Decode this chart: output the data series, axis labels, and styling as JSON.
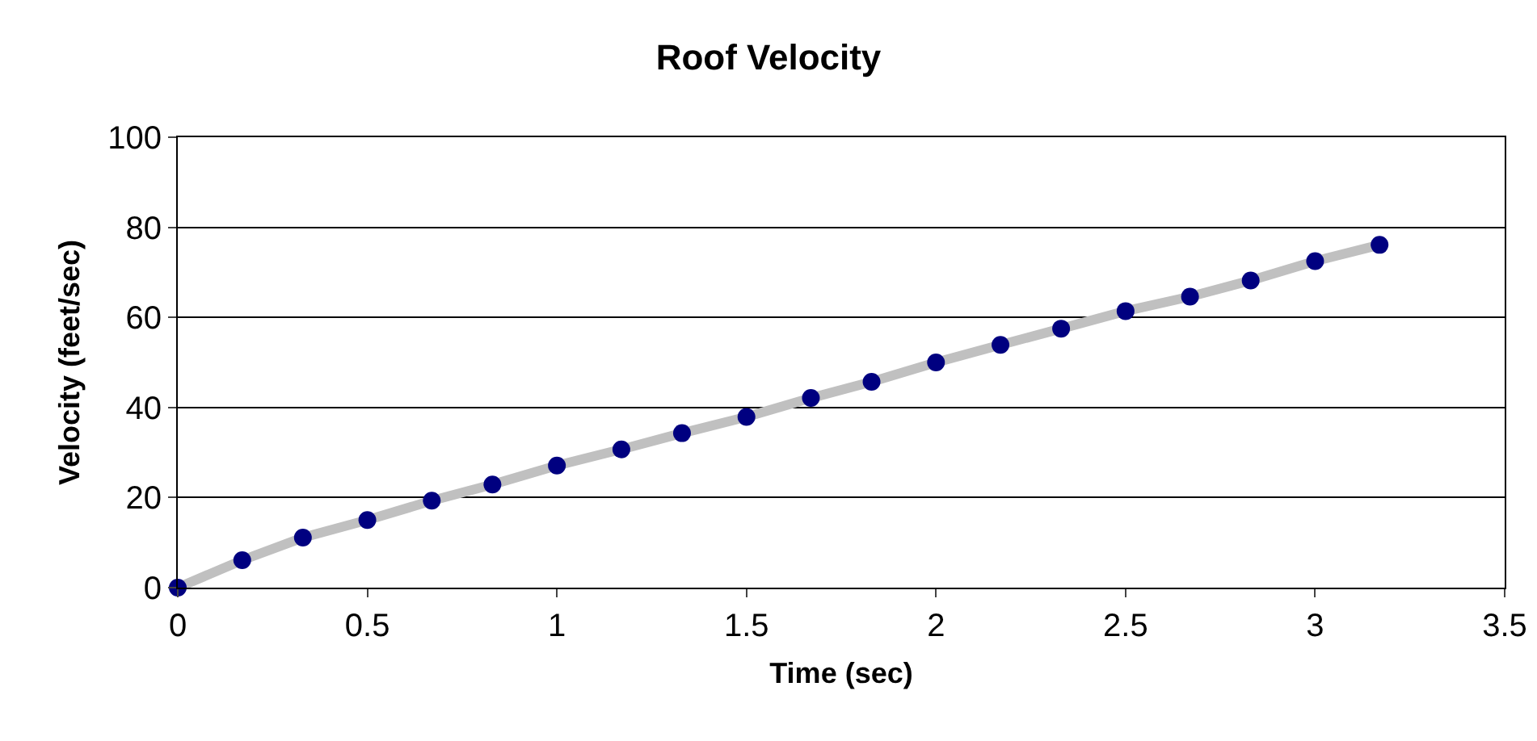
{
  "chart_data": {
    "type": "scatter",
    "title": "Roof Velocity",
    "xlabel": "Time (sec)",
    "ylabel": "Velocity (feet/sec)",
    "x": [
      0,
      0.17,
      0.33,
      0.5,
      0.67,
      0.83,
      1,
      1.17,
      1.33,
      1.5,
      1.67,
      1.83,
      2,
      2.17,
      2.33,
      2.5,
      2.67,
      2.83,
      3,
      3.17
    ],
    "series": [
      {
        "type": "line",
        "color": "#c0c0c0",
        "line_style": "solid",
        "values": [
          0,
          6.1,
          11.1,
          15,
          19.3,
          22.9,
          27.1,
          30.7,
          34.3,
          37.9,
          42.1,
          45.7,
          50,
          53.9,
          57.5,
          61.4,
          64.6,
          68.2,
          72.5,
          76.1
        ]
      },
      {
        "color": "#000080",
        "marker": "circle",
        "values": [
          0,
          6.1,
          11.1,
          15,
          19.3,
          22.9,
          27.1,
          30.7,
          34.3,
          37.9,
          42.1,
          45.7,
          50,
          53.9,
          57.5,
          61.4,
          64.6,
          68.2,
          72.5,
          76.1
        ]
      }
    ],
    "xlim": [
      0,
      3.5
    ],
    "xticks": [
      0,
      0.5,
      1,
      1.5,
      2,
      2.5,
      3,
      3.5
    ],
    "ylim": [
      0,
      100
    ],
    "yticks": [
      0,
      20,
      40,
      60,
      80,
      100
    ],
    "grid": "y"
  }
}
